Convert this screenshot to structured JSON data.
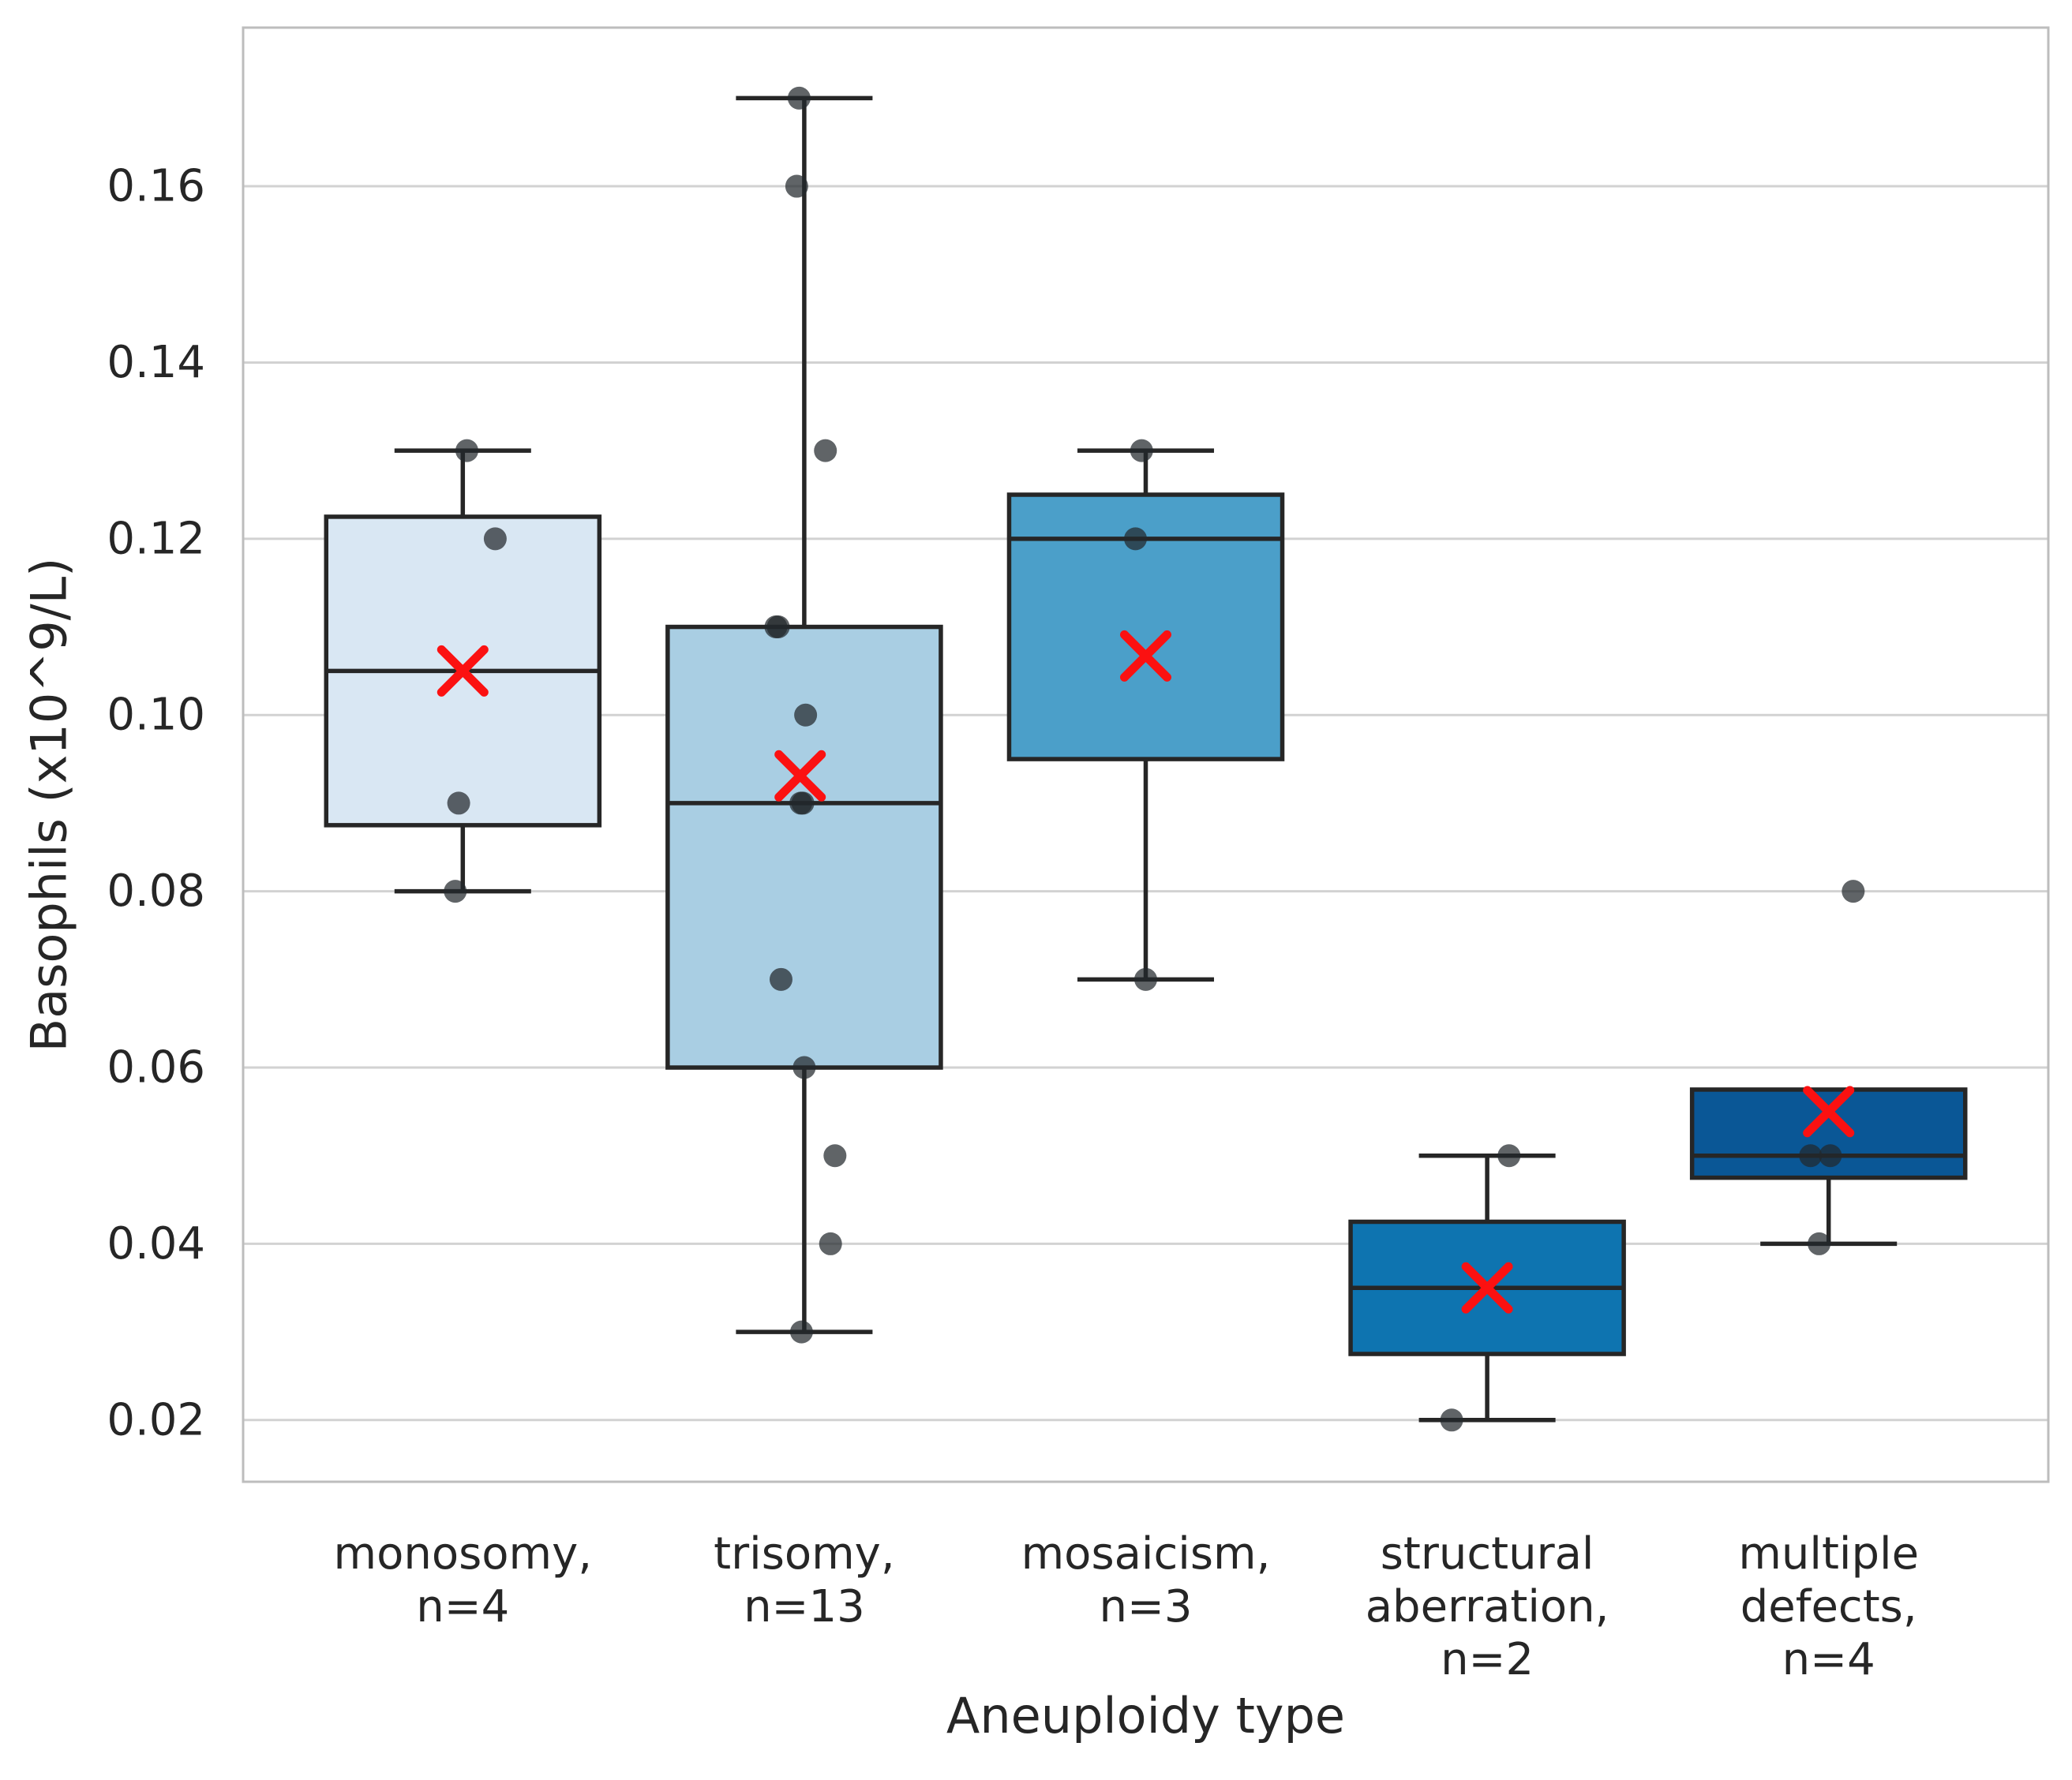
{
  "chart_data": {
    "type": "box",
    "xlabel": "Aneuploidy type",
    "ylabel": "Basophils (x10^9/L)",
    "ylim": [
      0.013,
      0.178
    ],
    "grid": "horizontal",
    "legend": "none",
    "yticks": [
      {
        "v": 0.16,
        "label": "0.16"
      },
      {
        "v": 0.14,
        "label": "0.14"
      },
      {
        "v": 0.12,
        "label": "0.12"
      },
      {
        "v": 0.1,
        "label": "0.10"
      },
      {
        "v": 0.08,
        "label": "0.08"
      },
      {
        "v": 0.06,
        "label": "0.06"
      },
      {
        "v": 0.04,
        "label": "0.04"
      },
      {
        "v": 0.02,
        "label": "0.02"
      }
    ],
    "colors": {
      "grid": "#d2d2d2",
      "spine": "#bdbdbd",
      "line": "#262626",
      "text": "#262626",
      "point": "#23282c",
      "mean": "#fb1111"
    },
    "groups": [
      {
        "id": "monosomy",
        "label_lines": [
          "monosomy,",
          "n=4"
        ],
        "n": 4,
        "color": "#d9e7f3",
        "box": {
          "whisker_low": 0.08,
          "q1": 0.0875,
          "median": 0.105,
          "q3": 0.1225,
          "whisker_high": 0.13
        },
        "mean": 0.105,
        "mean_dx": 0,
        "points": [
          {
            "v": 0.13,
            "dx": 0.012
          },
          {
            "v": 0.12,
            "dx": 0.095
          },
          {
            "v": 0.09,
            "dx": -0.012
          },
          {
            "v": 0.08,
            "dx": -0.022
          }
        ]
      },
      {
        "id": "trisomy",
        "label_lines": [
          "trisomy,",
          "n=13"
        ],
        "n": 13,
        "color": "#a9cee3",
        "box": {
          "whisker_low": 0.03,
          "q1": 0.06,
          "median": 0.09,
          "q3": 0.11,
          "whisker_high": 0.17
        },
        "mean": 0.0931,
        "mean_dx": -0.012,
        "points": [
          {
            "v": 0.17,
            "dx": -0.015
          },
          {
            "v": 0.16,
            "dx": -0.022
          },
          {
            "v": 0.13,
            "dx": 0.062
          },
          {
            "v": 0.11,
            "dx": -0.083
          },
          {
            "v": 0.11,
            "dx": -0.076
          },
          {
            "v": 0.1,
            "dx": 0.004
          },
          {
            "v": 0.09,
            "dx": -0.01
          },
          {
            "v": 0.09,
            "dx": -0.004
          },
          {
            "v": 0.07,
            "dx": -0.068
          },
          {
            "v": 0.06,
            "dx": 0.0
          },
          {
            "v": 0.05,
            "dx": 0.09
          },
          {
            "v": 0.04,
            "dx": 0.077
          },
          {
            "v": 0.03,
            "dx": -0.008
          }
        ]
      },
      {
        "id": "mosaicism",
        "label_lines": [
          "mosaicism,",
          "n=3"
        ],
        "n": 3,
        "color": "#4b9fc9",
        "box": {
          "whisker_low": 0.07,
          "q1": 0.095,
          "median": 0.12,
          "q3": 0.125,
          "whisker_high": 0.13
        },
        "mean": 0.1067,
        "mean_dx": 0,
        "points": [
          {
            "v": 0.13,
            "dx": -0.012
          },
          {
            "v": 0.12,
            "dx": -0.03
          },
          {
            "v": 0.07,
            "dx": 0.0
          }
        ]
      },
      {
        "id": "structural-aberration",
        "label_lines": [
          "structural",
          "aberration,",
          "n=2"
        ],
        "n": 2,
        "color": "#0e74b0",
        "box": {
          "whisker_low": 0.02,
          "q1": 0.0275,
          "median": 0.035,
          "q3": 0.0425,
          "whisker_high": 0.05
        },
        "mean": 0.035,
        "mean_dx": 0,
        "points": [
          {
            "v": 0.05,
            "dx": 0.064
          },
          {
            "v": 0.02,
            "dx": -0.104
          }
        ]
      },
      {
        "id": "multiple-defects",
        "label_lines": [
          "multiple",
          "defects,",
          "n=4"
        ],
        "n": 4,
        "color": "#0a5796",
        "box": {
          "whisker_low": 0.04,
          "q1": 0.0475,
          "median": 0.05,
          "q3": 0.0575,
          "whisker_high": null
        },
        "mean": 0.055,
        "mean_dx": 0,
        "points": [
          {
            "v": 0.08,
            "dx": 0.072
          },
          {
            "v": 0.05,
            "dx": -0.053
          },
          {
            "v": 0.05,
            "dx": 0.005
          },
          {
            "v": 0.04,
            "dx": -0.028
          }
        ]
      }
    ]
  }
}
